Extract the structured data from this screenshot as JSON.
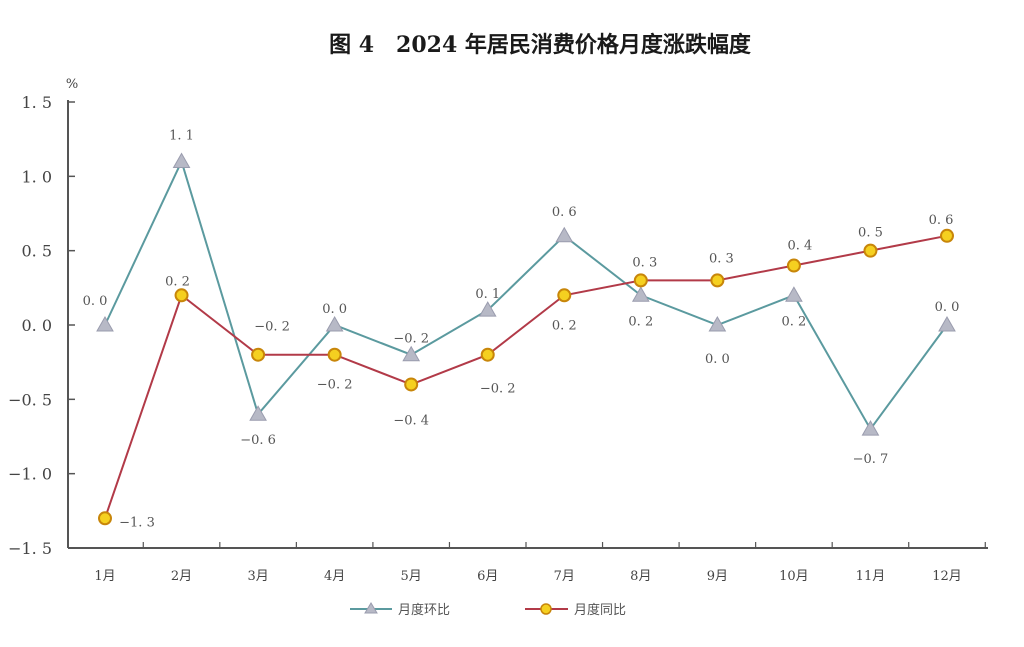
{
  "chart_data": {
    "type": "line",
    "title": "图 4　2024 年居民消费价格月度涨跌幅度",
    "ylabel": "%",
    "xlabel": "",
    "ylim": [
      -1.5,
      1.5
    ],
    "yticks": [
      1.5,
      1.0,
      0.5,
      0.0,
      -0.5,
      -1.0,
      -1.5
    ],
    "ytick_labels": [
      "1. 5",
      "1. 0",
      "0. 5",
      "0. 0",
      "−0. 5",
      "−1. 0",
      "−1. 5"
    ],
    "categories": [
      "1月",
      "2月",
      "3月",
      "4月",
      "5月",
      "6月",
      "7月",
      "8月",
      "9月",
      "10月",
      "11月",
      "12月"
    ],
    "grid": false,
    "legend_position": "bottom",
    "series": [
      {
        "name": "月度环比",
        "marker": "triangle",
        "color": "#5b9a9f",
        "marker_color": "#b7b9c6",
        "values": [
          0.0,
          1.1,
          -0.6,
          0.0,
          -0.2,
          0.1,
          0.6,
          0.2,
          0.0,
          0.2,
          -0.7,
          0.0
        ],
        "labels": [
          "0. 0",
          "1. 1",
          "−0. 6",
          "0. 0",
          "−0. 2",
          "0. 1",
          "0. 6",
          "0. 2",
          "0. 0",
          "0. 2",
          "−0. 7",
          "0. 0"
        ]
      },
      {
        "name": "月度同比",
        "marker": "circle",
        "color": "#b23a48",
        "marker_color": "#f5d020",
        "marker_edge": "#c8860a",
        "values": [
          -1.3,
          0.2,
          -0.2,
          -0.2,
          -0.4,
          -0.2,
          0.2,
          0.3,
          0.3,
          0.4,
          0.5,
          0.6
        ],
        "labels": [
          "−1. 3",
          "0. 2",
          "−0. 2",
          "−0. 2",
          "−0. 4",
          "−0. 2",
          "0. 2",
          "0. 3",
          "0. 3",
          "0. 4",
          "0. 5",
          "0. 6"
        ]
      }
    ]
  }
}
